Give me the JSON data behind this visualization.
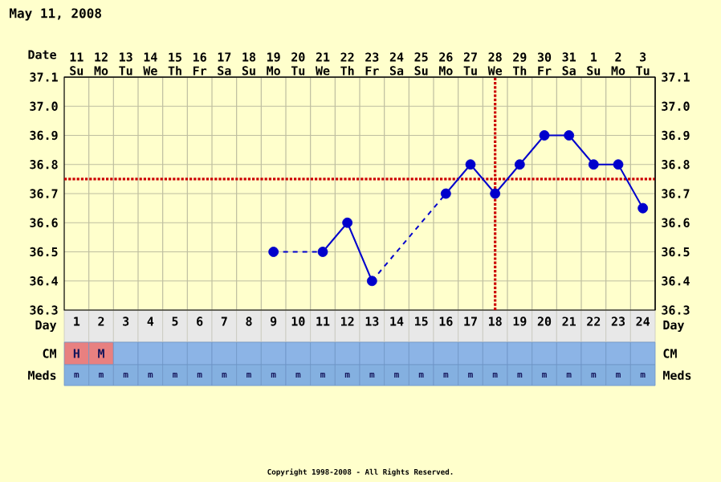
{
  "chart_data": {
    "type": "line",
    "title": "May 11, 2008",
    "xlabel": "Day",
    "x2label": "Date",
    "categories": [
      "1",
      "2",
      "3",
      "4",
      "5",
      "6",
      "7",
      "8",
      "9",
      "10",
      "11",
      "12",
      "13",
      "14",
      "15",
      "16",
      "17",
      "18",
      "19",
      "20",
      "21",
      "22",
      "23",
      "24"
    ],
    "x2lim": [
      "2008-05-10T12:00",
      "2008-06-03T12:00"
    ],
    "x2ticks": [
      {
        "value": "2008-05-11",
        "label": "11 Su"
      },
      {
        "value": "2008-05-12",
        "label": "12 Mo"
      },
      {
        "value": "2008-05-13",
        "label": "13 Tu"
      },
      {
        "value": "2008-05-14",
        "label": "14 We"
      },
      {
        "value": "2008-05-15",
        "label": "15 Th"
      },
      {
        "value": "2008-05-16",
        "label": "16 Fr"
      },
      {
        "value": "2008-05-17",
        "label": "17 Sa"
      },
      {
        "value": "2008-05-18",
        "label": "18 Su"
      },
      {
        "value": "2008-05-19",
        "label": "19 Mo"
      },
      {
        "value": "2008-05-20",
        "label": "20 Tu"
      },
      {
        "value": "2008-05-21",
        "label": "21 We"
      },
      {
        "value": "2008-05-22",
        "label": "22 Th"
      },
      {
        "value": "2008-05-23",
        "label": "23 Fr"
      },
      {
        "value": "2008-05-24",
        "label": "24 Sa"
      },
      {
        "value": "2008-05-25",
        "label": "25 Su"
      },
      {
        "value": "2008-05-26",
        "label": "26 Mo"
      },
      {
        "value": "2008-05-27",
        "label": "27 Tu"
      },
      {
        "value": "2008-05-28",
        "label": "28 We"
      },
      {
        "value": "2008-05-29",
        "label": "29 Th"
      },
      {
        "value": "2008-05-30",
        "label": "30 Fr"
      },
      {
        "value": "2008-05-31",
        "label": "31 Sa"
      },
      {
        "value": "2008-06-01",
        "label": "1 Su"
      },
      {
        "value": "2008-06-02",
        "label": "2 Mo"
      },
      {
        "value": "2008-06-03",
        "label": "3 Tu"
      }
    ],
    "ylim": [
      36.3,
      37.1
    ],
    "yticks": [
      36.3,
      36.4,
      36.5,
      36.6,
      36.7,
      36.8,
      36.9,
      {
        "value": 37.0,
        "label": "37.0"
      },
      37.1
    ],
    "y2lim": [
      36.3,
      37.1
    ],
    "y2ticks": [
      36.3,
      36.4,
      36.5,
      36.6,
      36.7,
      36.8,
      36.9,
      {
        "value": 37.0,
        "label": "37.0"
      },
      37.1
    ],
    "series": [
      {
        "color": "#0000cc",
        "values": [
          null,
          null,
          null,
          null,
          null,
          null,
          null,
          null,
          36.5,
          null,
          36.5,
          36.6,
          36.4,
          null,
          null,
          36.7,
          36.8,
          36.7,
          36.8,
          36.9,
          36.9,
          36.8,
          36.8,
          36.65
        ]
      }
    ],
    "marker": "circle",
    "line_style": "solid",
    "grid": true,
    "ref_lines": [
      {
        "axis": "y",
        "value": 36.75,
        "color": "#cc0000",
        "line_style": "dotted"
      },
      {
        "axis": "x",
        "value": "18",
        "color": "#cc0000",
        "line_style": "dotted"
      }
    ],
    "annotations": [
      "Copyright 1998-2008 - All Rights Reserved.",
      "CM",
      "Meds",
      "H",
      "M",
      "m",
      "m",
      "m",
      "m",
      "m",
      "m",
      "m",
      "m",
      "m",
      "m",
      "m",
      "m",
      "m",
      "m",
      "m",
      "m",
      "m",
      "m",
      "m",
      "m",
      "m",
      "m",
      "m",
      "m"
    ]
  }
}
